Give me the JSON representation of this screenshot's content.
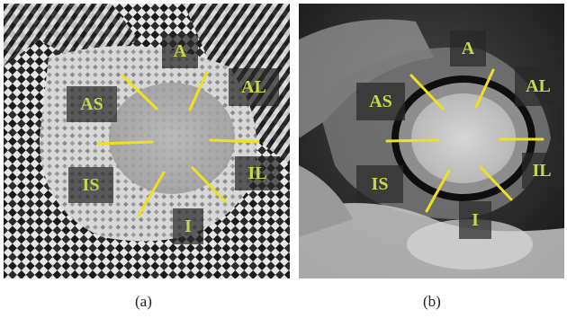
{
  "panels": [
    {
      "caption": "(a)",
      "segments": [
        {
          "label": "A"
        },
        {
          "label": "AL"
        },
        {
          "label": "AS"
        },
        {
          "label": "IS"
        },
        {
          "label": "IL"
        },
        {
          "label": "I"
        }
      ]
    },
    {
      "caption": "(b)",
      "segments": [
        {
          "label": "A"
        },
        {
          "label": "AL"
        },
        {
          "label": "AS"
        },
        {
          "label": "IS"
        },
        {
          "label": "IL"
        },
        {
          "label": "I"
        }
      ]
    }
  ],
  "colors": {
    "divider_line": "#f0e020",
    "label_text": "#c8d84a",
    "label_box": "#282828"
  }
}
